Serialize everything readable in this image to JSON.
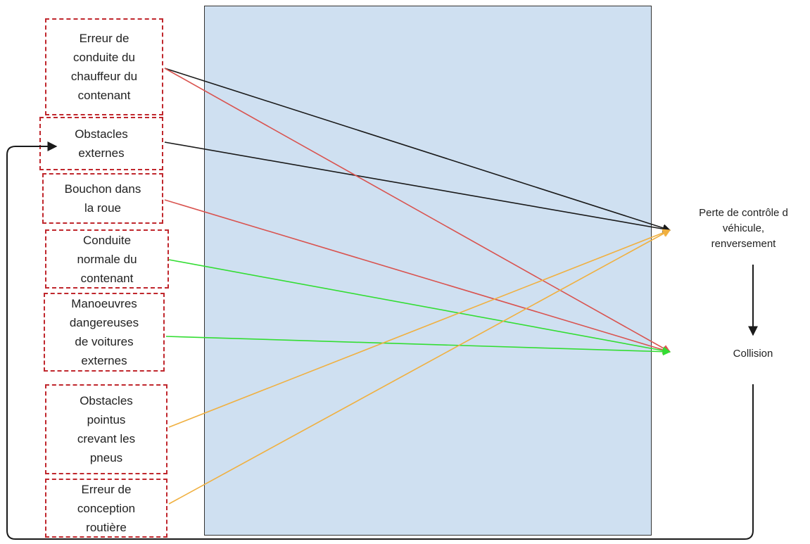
{
  "causes": [
    {
      "id": "c1",
      "label": "Erreur de\nconduite du\nchauffeur du\ncontenant"
    },
    {
      "id": "c2",
      "label": "Obstacles\nexternes"
    },
    {
      "id": "c3",
      "label": "Bouchon dans\nla roue"
    },
    {
      "id": "c4",
      "label": "Conduite\nnormale du\ncontenant"
    },
    {
      "id": "c5",
      "label": "Manoeuvres\ndangereuses\nde voitures\nexternes"
    },
    {
      "id": "c6",
      "label": "Obstacles\npointus\ncrevant les\npneus"
    },
    {
      "id": "c7",
      "label": "Erreur de\nconception\nroutière"
    }
  ],
  "effects": {
    "loss_of_control": "Perte de contrôle d\nvéhicule,\nrenversement",
    "collision": "Collision"
  },
  "colors": {
    "box_border": "#c0272d",
    "panel": "#cfe0f1",
    "black": "#1a1a1a",
    "red": "#d9534f",
    "green": "#33dd33",
    "orange": "#f0b040"
  },
  "links": [
    {
      "from": "c1",
      "to": "loss_of_control",
      "color": "black"
    },
    {
      "from": "c2",
      "to": "loss_of_control",
      "color": "black"
    },
    {
      "from": "c1",
      "to": "collision",
      "color": "red"
    },
    {
      "from": "c3",
      "to": "collision",
      "color": "red"
    },
    {
      "from": "c4",
      "to": "collision",
      "color": "green"
    },
    {
      "from": "c5",
      "to": "collision",
      "color": "green"
    },
    {
      "from": "c6",
      "to": "loss_of_control",
      "color": "orange"
    },
    {
      "from": "c7",
      "to": "loss_of_control",
      "color": "orange"
    }
  ]
}
